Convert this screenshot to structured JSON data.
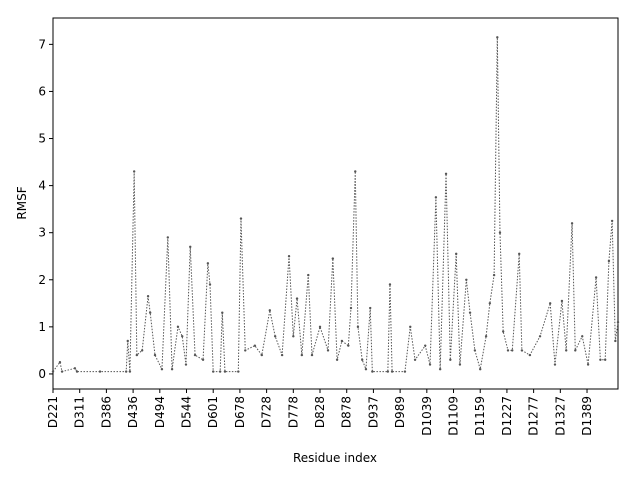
{
  "chart_data": {
    "type": "line",
    "xlabel": "Residue index",
    "ylabel": "RMSF",
    "x": [
      0,
      13,
      17,
      41,
      45,
      88,
      137,
      140,
      144,
      152,
      157,
      167,
      178,
      182,
      191,
      204,
      215,
      223,
      234,
      242,
      249,
      257,
      266,
      281,
      290,
      294,
      300,
      313,
      317,
      322,
      347,
      352,
      360,
      378,
      391,
      406,
      416,
      429,
      442,
      450,
      457,
      466,
      478,
      485,
      500,
      515,
      524,
      532,
      541,
      553,
      558,
      566,
      571,
      579,
      586,
      594,
      598,
      627,
      631,
      635,
      659,
      669,
      678,
      697,
      706,
      717,
      725,
      736,
      744,
      755,
      762,
      774,
      781,
      790,
      800,
      811,
      818,
      826,
      832,
      837,
      843,
      852,
      860,
      873,
      878,
      893,
      912,
      931,
      940,
      953,
      961,
      972,
      978,
      991,
      1002,
      1017,
      1025,
      1034,
      1041,
      1047,
      1053,
      1058
    ],
    "series": [
      {
        "color": "#555555",
        "values": [
          0.05,
          0.25,
          0.05,
          0.12,
          0.05,
          0.05,
          0.05,
          0.7,
          0.05,
          4.3,
          0.4,
          0.5,
          1.65,
          1.3,
          0.4,
          0.1,
          2.9,
          0.1,
          1.0,
          0.8,
          0.2,
          2.7,
          0.4,
          0.3,
          2.35,
          1.9,
          0.05,
          0.05,
          1.3,
          0.05,
          0.05,
          3.3,
          0.5,
          0.6,
          0.4,
          1.35,
          0.8,
          0.4,
          2.5,
          0.8,
          1.6,
          0.4,
          2.1,
          0.4,
          1.0,
          0.5,
          2.45,
          0.3,
          0.7,
          0.6,
          1.4,
          4.3,
          1.0,
          0.3,
          0.1,
          1.4,
          0.05,
          0.05,
          1.9,
          0.05,
          0.05,
          1.0,
          0.3,
          0.6,
          0.2,
          3.75,
          0.1,
          4.25,
          0.3,
          2.55,
          0.2,
          2.0,
          1.3,
          0.5,
          0.1,
          0.8,
          1.5,
          2.1,
          7.15,
          3.0,
          0.9,
          0.5,
          0.5,
          2.55,
          0.5,
          0.4,
          0.8,
          1.5,
          0.2,
          1.55,
          0.5,
          3.2,
          0.5,
          0.8,
          0.2,
          2.05,
          0.3,
          0.3,
          2.4,
          3.25,
          0.7,
          1.1
        ]
      }
    ],
    "xlim": [
      0,
      1058
    ],
    "xticks": [
      {
        "value": 0,
        "label": "D221"
      },
      {
        "value": 50,
        "label": "D311"
      },
      {
        "value": 100,
        "label": "D386"
      },
      {
        "value": 150,
        "label": "D436"
      },
      {
        "value": 200,
        "label": "D494"
      },
      {
        "value": 250,
        "label": "D544"
      },
      {
        "value": 300,
        "label": "D601"
      },
      {
        "value": 350,
        "label": "D678"
      },
      {
        "value": 400,
        "label": "D728"
      },
      {
        "value": 450,
        "label": "D778"
      },
      {
        "value": 500,
        "label": "D828"
      },
      {
        "value": 550,
        "label": "D878"
      },
      {
        "value": 600,
        "label": "D937"
      },
      {
        "value": 650,
        "label": "D989"
      },
      {
        "value": 700,
        "label": "D1039"
      },
      {
        "value": 750,
        "label": "D1109"
      },
      {
        "value": 800,
        "label": "D1159"
      },
      {
        "value": 850,
        "label": "D1227"
      },
      {
        "value": 900,
        "label": "D1277"
      },
      {
        "value": 950,
        "label": "D1327"
      },
      {
        "value": 1000,
        "label": "D1389"
      }
    ],
    "ylim": [
      -0.32,
      7.56
    ],
    "yticks": [
      0,
      1,
      2,
      3,
      4,
      5,
      6,
      7
    ]
  }
}
